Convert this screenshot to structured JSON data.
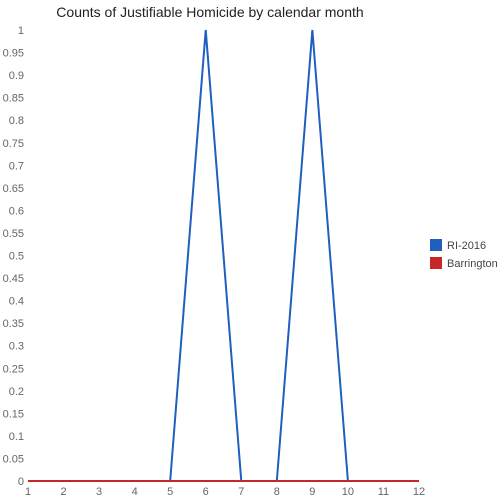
{
  "chart_data": {
    "type": "line",
    "title": "Counts of Justifiable Homicide by calendar month",
    "xlabel": "",
    "ylabel": "",
    "x": [
      1,
      2,
      3,
      4,
      5,
      6,
      7,
      8,
      9,
      10,
      11,
      12
    ],
    "x_ticks": [
      "1",
      "2",
      "3",
      "4",
      "5",
      "6",
      "7",
      "8",
      "9",
      "10",
      "11",
      "12"
    ],
    "y_ticks": [
      "0",
      "0.05",
      "0.1",
      "0.15",
      "0.2",
      "0.25",
      "0.3",
      "0.35",
      "0.4",
      "0.45",
      "0.5",
      "0.55",
      "0.6",
      "0.65",
      "0.7",
      "0.75",
      "0.8",
      "0.85",
      "0.9",
      "0.95",
      "1"
    ],
    "ylim": [
      0,
      1
    ],
    "xlim": [
      1,
      12
    ],
    "grid": false,
    "legend_position": "right",
    "series": [
      {
        "name": "RI-2016",
        "color": "#1f5fbf",
        "values": [
          0,
          0,
          0,
          0,
          0,
          1,
          0,
          0,
          1,
          0,
          0,
          0
        ]
      },
      {
        "name": "Barrington",
        "color": "#c62828",
        "values": [
          0,
          0,
          0,
          0,
          0,
          0,
          0,
          0,
          0,
          0,
          0,
          0
        ]
      }
    ]
  }
}
